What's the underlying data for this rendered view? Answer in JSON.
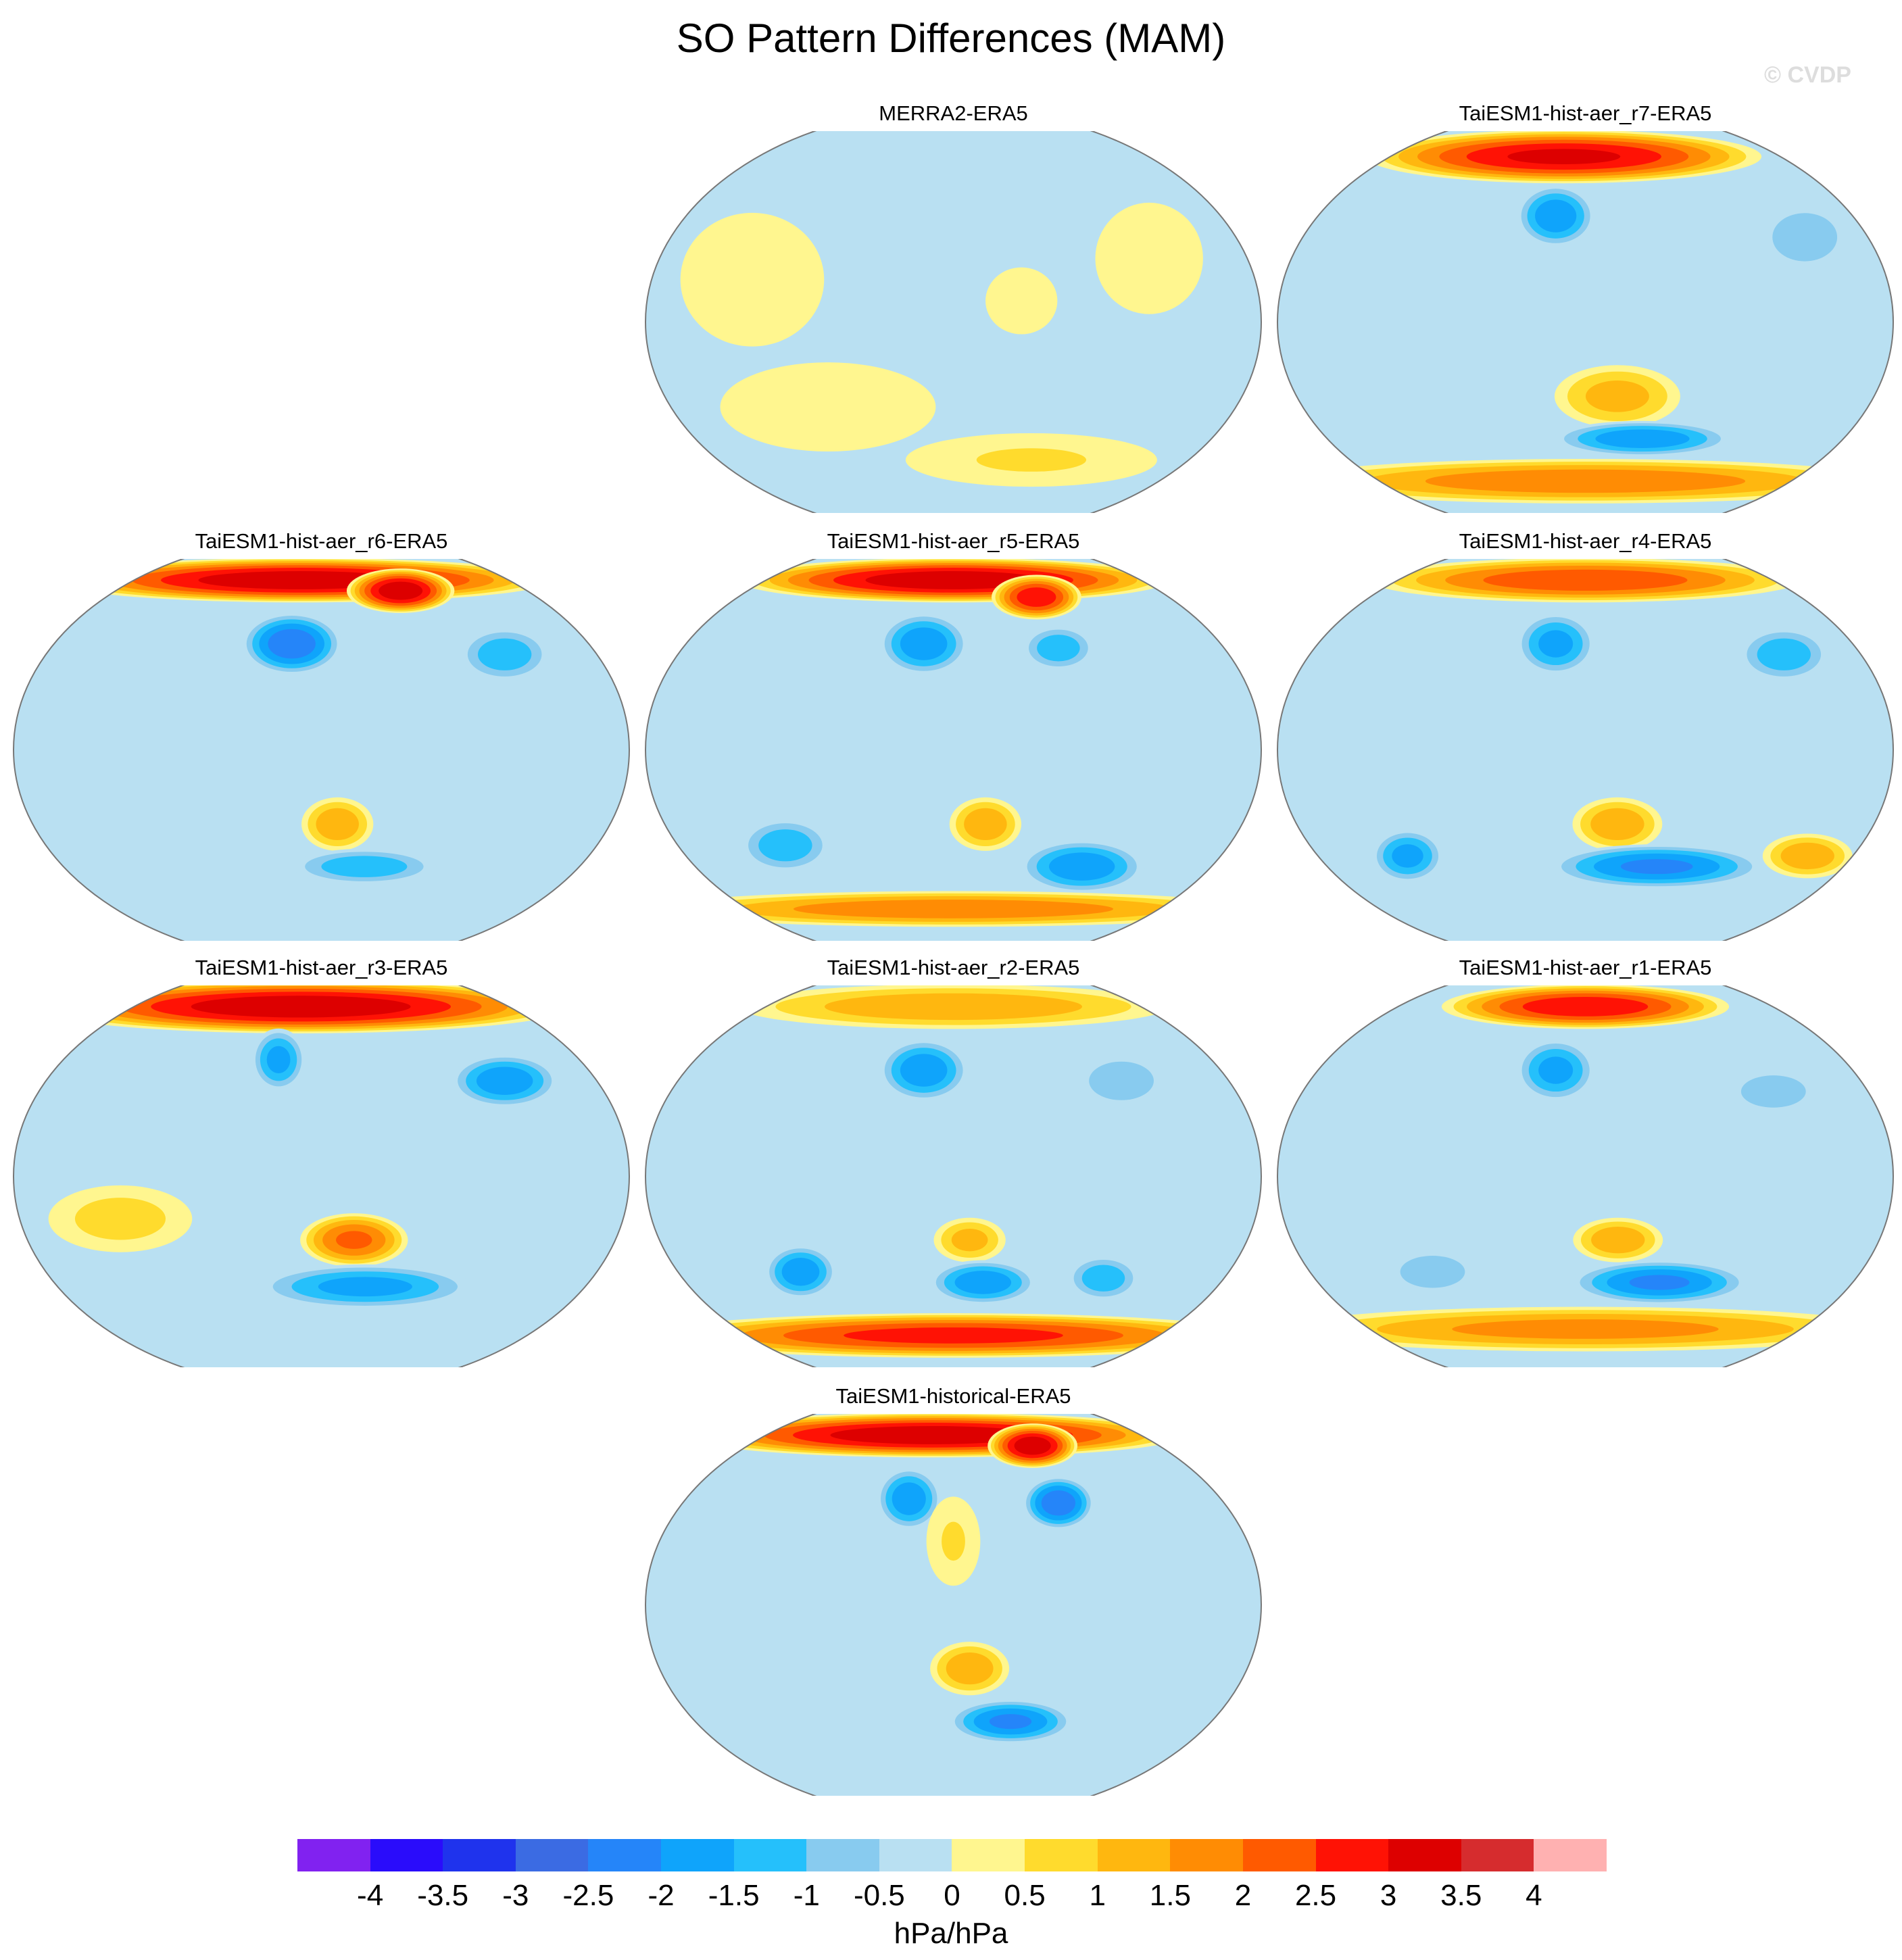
{
  "chart_data": {
    "type": "heatmap",
    "title": "SO Pattern Differences (MAM)",
    "watermark": "© CVDP",
    "units": "hPa/hPa",
    "levels": [
      "-4",
      "-3.5",
      "-3",
      "-2.5",
      "-2",
      "-1.5",
      "-1",
      "-0.5",
      "0",
      "0.5",
      "1",
      "1.5",
      "2",
      "2.5",
      "3",
      "3.5",
      "4"
    ],
    "colors": [
      "#8122F0",
      "#2A0CFB",
      "#1F33ED",
      "#3B6BE3",
      "#2585F9",
      "#0FA4FB",
      "#25C0FB",
      "#88CBEF",
      "#B9E0F2",
      "#FFF68F",
      "#FFDB2D",
      "#FFB70F",
      "#FF8C04",
      "#FF5A00",
      "#FF1205",
      "#DD0000",
      "#D62C2E",
      "#FFB1B1"
    ],
    "panels": [
      {
        "title": "MERRA2-ERA5",
        "features": [
          {
            "lon": 100,
            "lat": -40,
            "rx": 60,
            "ry": 20,
            "v": 0.3
          },
          {
            "lon": 60,
            "lat": 20,
            "rx": 40,
            "ry": 30,
            "v": 0.3
          },
          {
            "lon": 240,
            "lat": -65,
            "rx": 70,
            "ry": 12,
            "v": 0.6
          },
          {
            "lon": 300,
            "lat": 30,
            "rx": 30,
            "ry": 25,
            "v": 0.3
          },
          {
            "lon": 220,
            "lat": 10,
            "rx": 20,
            "ry": 15,
            "v": 0.3
          }
        ]
      },
      {
        "title": "TaiESM1-hist-aer_r7-ERA5",
        "features": [
          {
            "lon": 160,
            "lat": 78,
            "rx": 110,
            "ry": 12,
            "v": 3.2
          },
          {
            "lon": 160,
            "lat": 50,
            "rx": 22,
            "ry": 14,
            "v": -2
          },
          {
            "lon": 200,
            "lat": -35,
            "rx": 35,
            "ry": 14,
            "v": 1.3
          },
          {
            "lon": 220,
            "lat": -55,
            "rx": 50,
            "ry": 8,
            "v": -2
          },
          {
            "lon": 180,
            "lat": -75,
            "rx": 170,
            "ry": 10,
            "v": 2
          },
          {
            "lon": 320,
            "lat": 40,
            "rx": 25,
            "ry": 15,
            "v": -1
          }
        ]
      },
      {
        "title": "TaiESM1-hist-aer_r6-ERA5",
        "features": [
          {
            "lon": 160,
            "lat": 80,
            "rx": 140,
            "ry": 10,
            "v": 3.5
          },
          {
            "lon": 250,
            "lat": 75,
            "rx": 30,
            "ry": 10,
            "v": 3.5
          },
          {
            "lon": 160,
            "lat": 50,
            "rx": 28,
            "ry": 14,
            "v": -2.5
          },
          {
            "lon": 300,
            "lat": 45,
            "rx": 25,
            "ry": 12,
            "v": -1.5
          },
          {
            "lon": 190,
            "lat": -35,
            "rx": 20,
            "ry": 12,
            "v": 1.5
          },
          {
            "lon": 210,
            "lat": -55,
            "rx": 40,
            "ry": 8,
            "v": -1.5
          }
        ]
      },
      {
        "title": "TaiESM1-hist-aer_r5-ERA5",
        "features": [
          {
            "lon": 180,
            "lat": 80,
            "rx": 120,
            "ry": 10,
            "v": 3.5
          },
          {
            "lon": 250,
            "lat": 72,
            "rx": 25,
            "ry": 10,
            "v": 3
          },
          {
            "lon": 160,
            "lat": 50,
            "rx": 25,
            "ry": 14,
            "v": -2
          },
          {
            "lon": 250,
            "lat": 48,
            "rx": 20,
            "ry": 10,
            "v": -1.5
          },
          {
            "lon": 200,
            "lat": -35,
            "rx": 20,
            "ry": 12,
            "v": 1.5
          },
          {
            "lon": 270,
            "lat": -55,
            "rx": 35,
            "ry": 12,
            "v": -2
          },
          {
            "lon": 180,
            "lat": -75,
            "rx": 170,
            "ry": 8,
            "v": 2
          },
          {
            "lon": 70,
            "lat": -45,
            "rx": 25,
            "ry": 12,
            "v": -1.5
          }
        ]
      },
      {
        "title": "TaiESM1-hist-aer_r4-ERA5",
        "features": [
          {
            "lon": 180,
            "lat": 80,
            "rx": 120,
            "ry": 10,
            "v": 2.5
          },
          {
            "lon": 160,
            "lat": 50,
            "rx": 22,
            "ry": 14,
            "v": -1.8
          },
          {
            "lon": 310,
            "lat": 45,
            "rx": 25,
            "ry": 12,
            "v": -1.5
          },
          {
            "lon": 200,
            "lat": -35,
            "rx": 25,
            "ry": 12,
            "v": 1.5
          },
          {
            "lon": 230,
            "lat": -55,
            "rx": 60,
            "ry": 10,
            "v": -2.2
          },
          {
            "lon": 60,
            "lat": -50,
            "rx": 20,
            "ry": 12,
            "v": -1.8
          },
          {
            "lon": 330,
            "lat": -50,
            "rx": 25,
            "ry": 10,
            "v": 1.5
          }
        ]
      },
      {
        "title": "TaiESM1-hist-aer_r3-ERA5",
        "features": [
          {
            "lon": 160,
            "lat": 80,
            "rx": 150,
            "ry": 12,
            "v": 3.5
          },
          {
            "lon": 150,
            "lat": 55,
            "rx": 15,
            "ry": 14,
            "v": -1.8
          },
          {
            "lon": 300,
            "lat": 45,
            "rx": 30,
            "ry": 12,
            "v": -2
          },
          {
            "lon": 200,
            "lat": -30,
            "rx": 30,
            "ry": 12,
            "v": 2.2
          },
          {
            "lon": 210,
            "lat": -52,
            "rx": 60,
            "ry": 10,
            "v": -1.8
          },
          {
            "lon": 60,
            "lat": -20,
            "rx": 40,
            "ry": 15,
            "v": 0.8
          }
        ]
      },
      {
        "title": "TaiESM1-hist-aer_r2-ERA5",
        "features": [
          {
            "lon": 180,
            "lat": 80,
            "rx": 120,
            "ry": 10,
            "v": 1.5
          },
          {
            "lon": 160,
            "lat": 50,
            "rx": 25,
            "ry": 14,
            "v": -2
          },
          {
            "lon": 290,
            "lat": 45,
            "rx": 25,
            "ry": 12,
            "v": -1
          },
          {
            "lon": 190,
            "lat": -30,
            "rx": 20,
            "ry": 10,
            "v": 1.3
          },
          {
            "lon": 200,
            "lat": -50,
            "rx": 30,
            "ry": 10,
            "v": -2
          },
          {
            "lon": 80,
            "lat": -45,
            "rx": 20,
            "ry": 12,
            "v": -2
          },
          {
            "lon": 180,
            "lat": -75,
            "rx": 170,
            "ry": 10,
            "v": 2.8
          },
          {
            "lon": 280,
            "lat": -48,
            "rx": 20,
            "ry": 10,
            "v": -1.5
          }
        ]
      },
      {
        "title": "TaiESM1-hist-aer_r1-ERA5",
        "features": [
          {
            "lon": 180,
            "lat": 80,
            "rx": 80,
            "ry": 10,
            "v": 3
          },
          {
            "lon": 160,
            "lat": 50,
            "rx": 22,
            "ry": 14,
            "v": -1.8
          },
          {
            "lon": 300,
            "lat": 40,
            "rx": 25,
            "ry": 10,
            "v": -1
          },
          {
            "lon": 200,
            "lat": -30,
            "rx": 25,
            "ry": 10,
            "v": 1.5
          },
          {
            "lon": 230,
            "lat": -50,
            "rx": 50,
            "ry": 10,
            "v": -2.2
          },
          {
            "lon": 180,
            "lat": -72,
            "rx": 170,
            "ry": 10,
            "v": 1.8
          },
          {
            "lon": 80,
            "lat": -45,
            "rx": 25,
            "ry": 10,
            "v": -1
          }
        ]
      },
      {
        "title": "TaiESM1-historical-ERA5",
        "features": [
          {
            "lon": 160,
            "lat": 80,
            "rx": 140,
            "ry": 10,
            "v": 3.5
          },
          {
            "lon": 250,
            "lat": 75,
            "rx": 25,
            "ry": 10,
            "v": 3.5
          },
          {
            "lon": 150,
            "lat": 50,
            "rx": 18,
            "ry": 14,
            "v": -2
          },
          {
            "lon": 250,
            "lat": 48,
            "rx": 20,
            "ry": 12,
            "v": -2.5
          },
          {
            "lon": 190,
            "lat": -30,
            "rx": 22,
            "ry": 12,
            "v": 1.5
          },
          {
            "lon": 220,
            "lat": -55,
            "rx": 35,
            "ry": 10,
            "v": -2.2
          },
          {
            "lon": 180,
            "lat": 30,
            "rx": 15,
            "ry": 20,
            "v": 0.6
          }
        ]
      }
    ]
  }
}
